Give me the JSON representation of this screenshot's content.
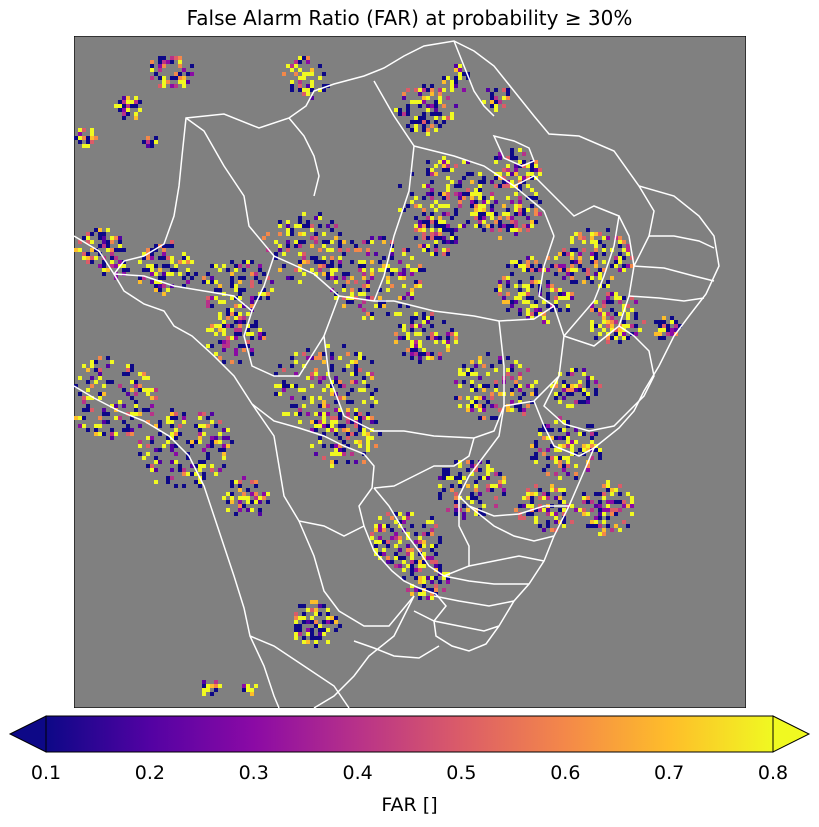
{
  "title": "False Alarm Ratio (FAR) at probability ≥ 30%",
  "colormap": {
    "name": "plasma",
    "stops": [
      "#0d0887",
      "#5302a3",
      "#8b0aa5",
      "#b83289",
      "#db5c68",
      "#f48849",
      "#febd2a",
      "#f0f921"
    ],
    "min": 0.1,
    "max": 0.8,
    "extend": "both",
    "ticks": [
      "0.1",
      "0.2",
      "0.3",
      "0.4",
      "0.5",
      "0.6",
      "0.7",
      "0.8"
    ],
    "label": "FAR []"
  },
  "map": {
    "background": "#808080",
    "boundary_color": "#ffffff",
    "region": "Brazil and neighboring South America with state boundaries"
  }
}
